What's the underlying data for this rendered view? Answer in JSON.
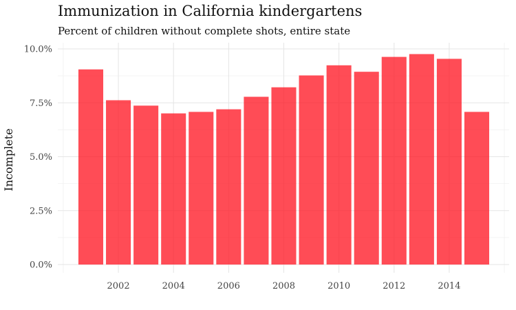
{
  "chart_data": {
    "type": "bar",
    "title": "Immunization in California kindergartens",
    "subtitle": "Percent of children without complete shots, entire state",
    "xlabel": "",
    "ylabel": "Incomplete",
    "x": [
      2001,
      2002,
      2003,
      2004,
      2005,
      2006,
      2007,
      2008,
      2009,
      2010,
      2011,
      2012,
      2013,
      2014,
      2015
    ],
    "values": [
      9.05,
      7.62,
      7.37,
      7.01,
      7.08,
      7.2,
      7.78,
      8.22,
      8.77,
      9.24,
      8.94,
      9.63,
      9.76,
      9.54,
      7.08
    ],
    "x_ticks": [
      2002,
      2004,
      2006,
      2008,
      2010,
      2012,
      2014
    ],
    "x_tick_labels": [
      "2002",
      "2004",
      "2006",
      "2008",
      "2010",
      "2012",
      "2014"
    ],
    "y_ticks": [
      0,
      2.5,
      5,
      7.5,
      10
    ],
    "y_tick_labels": [
      "0.0%",
      "2.5%",
      "5.0%",
      "7.5%",
      "10.0%"
    ],
    "ylim": [
      0,
      10
    ],
    "grid": true,
    "legend": false,
    "bar_color": "#ff1a26"
  }
}
